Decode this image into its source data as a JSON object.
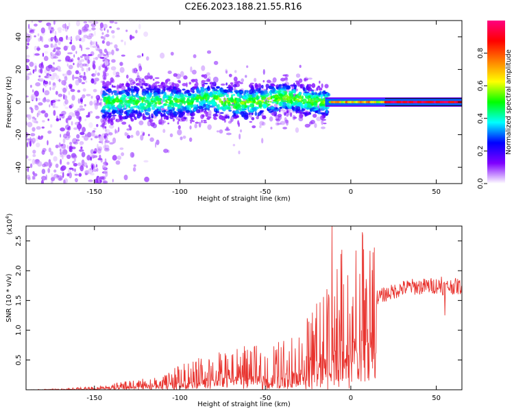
{
  "figure": {
    "title": "C2E6.2023.188.21.55.R16"
  },
  "chart_data": [
    {
      "type": "heatmap",
      "title": "C2E6.2023.188.21.55.R16",
      "xlabel": "Height of straight line (km)",
      "ylabel": "Frequency (Hz)",
      "xlim": [
        -190,
        65
      ],
      "ylim": [
        -50,
        50
      ],
      "x_ticks": [
        -150,
        -100,
        -50,
        0,
        50
      ],
      "y_ticks": [
        -40,
        -20,
        0,
        20,
        40
      ],
      "colorbar": {
        "label": "Normalized spectral amplitude",
        "range": [
          0,
          1
        ],
        "ticks": [
          0.0,
          0.2,
          0.4,
          0.6,
          0.8
        ],
        "tick_labels": [
          "0.0",
          "0.2",
          "0.4",
          "0.6",
          "0.8"
        ],
        "colormap": [
          "#ffffff",
          "#7f00ff",
          "#0000ff",
          "#00ffff",
          "#00ff00",
          "#ffff00",
          "#ff8000",
          "#ff0000",
          "#ff0080"
        ]
      },
      "description_series": [
        {
          "x_range": [
            -190,
            -145
          ],
          "freq_spread": 50,
          "amplitude": 0.15
        },
        {
          "x_range": [
            -145,
            -15
          ],
          "freq_spread": 12,
          "amplitude": 0.3
        },
        {
          "x_range": [
            -15,
            65
          ],
          "freq_spread": 2,
          "amplitude": 0.9
        }
      ]
    },
    {
      "type": "line",
      "xlabel": "Height of straight line (km)",
      "ylabel": "SNR (10 * v/v)",
      "y_multiplier": "(x10",
      "y_multiplier_exp": "4",
      "y_multiplier_close": ")",
      "xlim": [
        -190,
        65
      ],
      "ylim": [
        0,
        27500
      ],
      "x_ticks": [
        -150,
        -100,
        -50,
        0,
        50
      ],
      "y_ticks": [
        5000,
        10000,
        15000,
        20000,
        25000
      ],
      "y_tick_labels": [
        "0.5",
        "1.0",
        "1.5",
        "2.0",
        "2.5"
      ],
      "series": [
        {
          "color": "#e8332e",
          "x": [
            -190,
            -170,
            -150,
            -130,
            -110,
            -100,
            -90,
            -80,
            -70,
            -60,
            -50,
            -40,
            -30,
            -25,
            -20,
            -15,
            -12,
            -10,
            -5,
            0,
            5,
            10,
            15,
            20,
            25,
            30,
            35,
            40,
            45,
            50,
            55,
            60,
            65
          ],
          "y": [
            0,
            100,
            300,
            800,
            1300,
            2200,
            2800,
            3300,
            3500,
            4000,
            3800,
            4500,
            5500,
            6500,
            8000,
            9500,
            11000,
            11500,
            12500,
            13000,
            14000,
            15000,
            15500,
            16000,
            16500,
            17000,
            17300,
            17300,
            17400,
            17500,
            17200,
            17400,
            17300
          ],
          "spikes": [
            {
              "x": -11,
              "y": 27500
            },
            {
              "x": -13,
              "y": 16000
            },
            {
              "x": 53,
              "y": 19000
            },
            {
              "x": 55,
              "y": 12500
            }
          ]
        }
      ]
    }
  ]
}
